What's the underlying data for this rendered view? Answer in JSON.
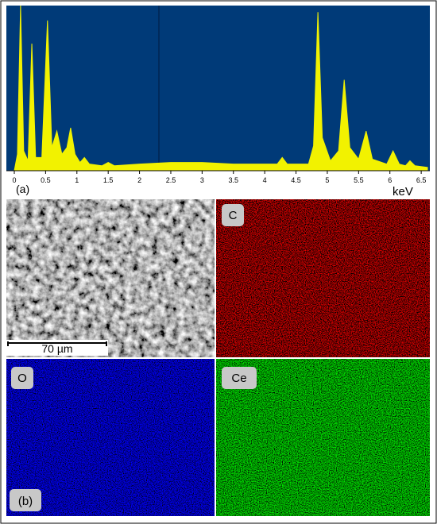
{
  "chart_data": {
    "type": "area",
    "panel_label": "(a)",
    "x_label": "keV",
    "color": "#f2f200",
    "background": "#003a78",
    "x": [
      0,
      0.05,
      0.1,
      0.15,
      0.22,
      0.28,
      0.34,
      0.44,
      0.53,
      0.6,
      0.68,
      0.76,
      0.84,
      0.9,
      0.97,
      1.05,
      1.12,
      1.2,
      1.4,
      1.5,
      1.6,
      2.0,
      2.5,
      3.0,
      3.5,
      4.0,
      4.2,
      4.28,
      4.36,
      4.7,
      4.78,
      4.85,
      4.92,
      5.05,
      5.18,
      5.27,
      5.36,
      5.5,
      5.62,
      5.72,
      5.95,
      6.05,
      6.15,
      6.25,
      6.32,
      6.4,
      6.6
    ],
    "values": [
      0,
      10,
      100,
      12,
      6,
      77,
      8,
      8,
      91,
      14,
      24,
      10,
      14,
      26,
      10,
      5,
      8,
      4,
      3,
      5,
      3,
      4,
      5,
      5,
      4,
      4,
      4,
      8,
      4,
      4,
      15,
      96,
      20,
      6,
      12,
      55,
      14,
      7,
      24,
      7,
      4,
      12,
      4,
      3,
      6,
      3,
      2
    ],
    "xlim": [
      0,
      6.6
    ],
    "ylim": [
      0,
      100
    ],
    "xticks": [
      0,
      0.5,
      1,
      1.5,
      2,
      2.5,
      3,
      3.5,
      4,
      4.5,
      5,
      5.5,
      6,
      6.5
    ]
  },
  "maps": {
    "panel_label": "(b)",
    "scale_bar": "70 µm",
    "elements": [
      "C",
      "O",
      "Ce"
    ]
  }
}
